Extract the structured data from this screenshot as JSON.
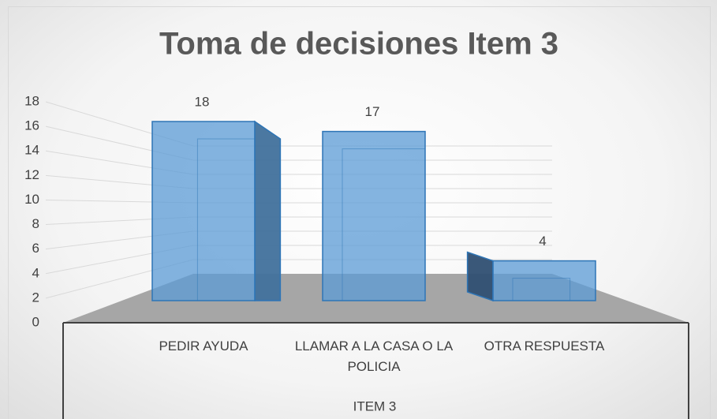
{
  "chart_data": {
    "type": "bar",
    "title": "Toma de decisiones Item 3",
    "categories": [
      "PEDIR AYUDA",
      "LLAMAR A LA CASA O LA POLICIA",
      "OTRA RESPUESTA"
    ],
    "values": [
      18,
      17,
      4
    ],
    "color": "#5b9bd5",
    "ylim": [
      0,
      18
    ],
    "yticks": [
      0,
      2,
      4,
      6,
      8,
      10,
      12,
      14,
      16,
      18
    ],
    "grid": true,
    "x_axis_label": "ITEM 3"
  }
}
